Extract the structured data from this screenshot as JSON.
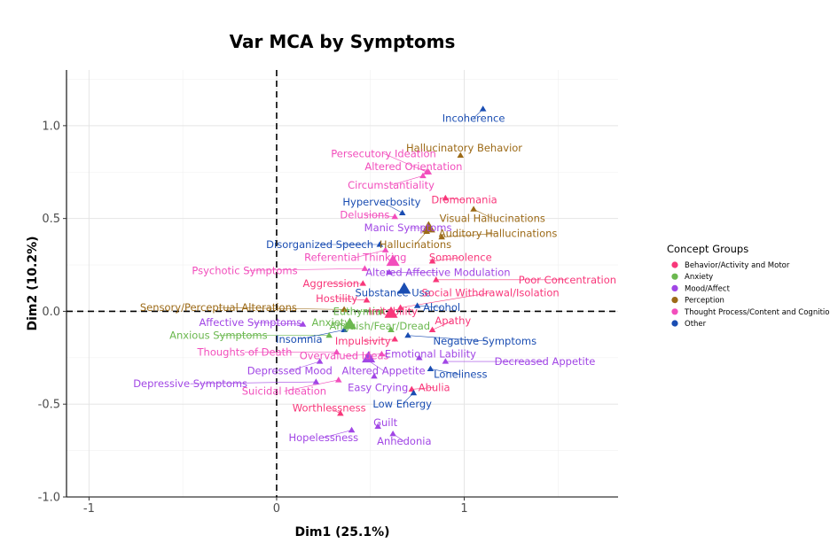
{
  "chart_data": {
    "type": "scatter",
    "title": "Var MCA by Symptoms",
    "xlabel": "Dim1 (25.1%)",
    "ylabel": "Dim2 (10.2%)",
    "xlim": [
      -1.12,
      1.82
    ],
    "ylim": [
      -1.0,
      1.3
    ],
    "x_ticks": [
      {
        "v": -1,
        "label": "-1"
      },
      {
        "v": 0,
        "label": "0"
      },
      {
        "v": 1,
        "label": "1"
      }
    ],
    "y_ticks": [
      {
        "v": -1.0,
        "label": "-1.0"
      },
      {
        "v": -0.5,
        "label": "-0.5"
      },
      {
        "v": 0.0,
        "label": "0.0"
      },
      {
        "v": 0.5,
        "label": "0.5"
      },
      {
        "v": 1.0,
        "label": "1.0"
      }
    ],
    "grid": true,
    "reference_lines": {
      "x": 0,
      "y": 0,
      "style": "dashed"
    },
    "legend": {
      "title": "Concept Groups",
      "placement": "right",
      "entries": [
        {
          "key": "behavior",
          "label": "Behavior/Activity and Motor",
          "color": "#F8377A"
        },
        {
          "key": "anxiety",
          "label": "Anxiety",
          "color": "#6BB84F"
        },
        {
          "key": "mood",
          "label": "Mood/Affect",
          "color": "#A146E5"
        },
        {
          "key": "perception",
          "label": "Perception",
          "color": "#9C6A17"
        },
        {
          "key": "thought",
          "label": "Thought Process/Content and Cognition",
          "color": "#F24EBC"
        },
        {
          "key": "other",
          "label": "Other",
          "color": "#1A4DB2"
        }
      ]
    },
    "points": [
      {
        "label": "Incoherence",
        "group": "other",
        "x": 1.1,
        "y": 1.09,
        "lx": 1.05,
        "ly": 1.04
      },
      {
        "label": "Hallucinatory Behavior",
        "group": "perception",
        "x": 0.98,
        "y": 0.84,
        "lx": 1.0,
        "ly": 0.88
      },
      {
        "label": "Persecutory Ideation",
        "group": "thought",
        "x": 0.8,
        "y": 0.75,
        "lx": 0.57,
        "ly": 0.85
      },
      {
        "label": "Altered Orientation",
        "group": "thought",
        "x": 0.81,
        "y": 0.75,
        "lx": 0.73,
        "ly": 0.78
      },
      {
        "label": "Circumstantiality",
        "group": "thought",
        "x": 0.78,
        "y": 0.73,
        "lx": 0.61,
        "ly": 0.68
      },
      {
        "label": "Dromomania",
        "group": "behavior",
        "x": 0.9,
        "y": 0.61,
        "lx": 1.0,
        "ly": 0.6
      },
      {
        "label": "Hyperverbosity",
        "group": "other",
        "x": 0.67,
        "y": 0.53,
        "lx": 0.56,
        "ly": 0.59
      },
      {
        "label": "Delusions",
        "group": "thought",
        "x": 0.63,
        "y": 0.51,
        "lx": 0.47,
        "ly": 0.52
      },
      {
        "label": "Visual Hallucinations",
        "group": "perception",
        "x": 1.05,
        "y": 0.55,
        "lx": 1.15,
        "ly": 0.5
      },
      {
        "label": "Manic Symptoms",
        "group": "mood",
        "x": 0.81,
        "y": 0.45,
        "lx": 0.7,
        "ly": 0.45
      },
      {
        "label": "Auditory Hallucinations",
        "group": "perception",
        "x": 0.88,
        "y": 0.4,
        "lx": 1.18,
        "ly": 0.42
      },
      {
        "label": "Disorganized Speech",
        "group": "other",
        "x": 0.55,
        "y": 0.36,
        "lx": 0.23,
        "ly": 0.36
      },
      {
        "label": "Hallucinations",
        "group": "perception",
        "x": 0.8,
        "y": 0.43,
        "lx": 0.74,
        "ly": 0.36
      },
      {
        "label": "Referential Thinking",
        "group": "thought",
        "x": 0.58,
        "y": 0.33,
        "lx": 0.42,
        "ly": 0.29
      },
      {
        "label": "Somnolence",
        "group": "behavior",
        "x": 0.83,
        "y": 0.27,
        "lx": 0.98,
        "ly": 0.29
      },
      {
        "label": "Psychotic Symptoms",
        "group": "thought",
        "x": 0.47,
        "y": 0.23,
        "lx": -0.17,
        "ly": 0.22
      },
      {
        "label": "Altered Affective Modulation",
        "group": "mood",
        "x": 0.6,
        "y": 0.21,
        "lx": 0.86,
        "ly": 0.21
      },
      {
        "label": "Poor Concentration",
        "group": "behavior",
        "x": 0.85,
        "y": 0.17,
        "lx": 1.55,
        "ly": 0.17
      },
      {
        "label": "Aggression",
        "group": "behavior",
        "x": 0.46,
        "y": 0.15,
        "lx": 0.29,
        "ly": 0.15
      },
      {
        "label": "Substance Use",
        "group": "other",
        "x": 0.68,
        "y": 0.12,
        "lx": 0.62,
        "ly": 0.1
      },
      {
        "label": "Social Withdrawal/Isolation",
        "group": "behavior",
        "x": 0.66,
        "y": 0.02,
        "lx": 1.14,
        "ly": 0.1
      },
      {
        "label": "Hostility",
        "group": "behavior",
        "x": 0.48,
        "y": 0.06,
        "lx": 0.32,
        "ly": 0.07
      },
      {
        "label": "Alcohol",
        "group": "other",
        "x": 0.75,
        "y": 0.03,
        "lx": 0.88,
        "ly": 0.02
      },
      {
        "label": "Sensory/Perceptual Alterations",
        "group": "perception",
        "x": 0.36,
        "y": 0.01,
        "lx": -0.31,
        "ly": 0.02
      },
      {
        "label": "Euthymia",
        "group": "anxiety",
        "x": 0.56,
        "y": 0.0,
        "lx": 0.43,
        "ly": 0.0
      },
      {
        "label": "Irritability",
        "group": "behavior",
        "x": 0.62,
        "y": -0.01,
        "lx": 0.62,
        "ly": 0.0
      },
      {
        "label": "Apathy",
        "group": "behavior",
        "x": 0.83,
        "y": -0.1,
        "lx": 0.94,
        "ly": -0.05
      },
      {
        "label": "Affective Symptoms",
        "group": "mood",
        "x": 0.14,
        "y": -0.07,
        "lx": -0.14,
        "ly": -0.06
      },
      {
        "label": "Anxiety",
        "group": "anxiety",
        "x": 0.38,
        "y": -0.07,
        "lx": 0.29,
        "ly": -0.06
      },
      {
        "label": "Anguish/Fear/Dread",
        "group": "anxiety",
        "x": 0.61,
        "y": -0.1,
        "lx": 0.55,
        "ly": -0.08
      },
      {
        "label": "Anxious Symptoms",
        "group": "anxiety",
        "x": 0.28,
        "y": -0.13,
        "lx": -0.31,
        "ly": -0.13
      },
      {
        "label": "Insomnia",
        "group": "other",
        "x": 0.36,
        "y": -0.1,
        "lx": 0.12,
        "ly": -0.15
      },
      {
        "label": "Negative Symptoms",
        "group": "other",
        "x": 0.7,
        "y": -0.13,
        "lx": 1.11,
        "ly": -0.16
      },
      {
        "label": "Impulsivity",
        "group": "behavior",
        "x": 0.63,
        "y": -0.15,
        "lx": 0.46,
        "ly": -0.16
      },
      {
        "label": "Thoughts of Death",
        "group": "thought",
        "x": 0.32,
        "y": -0.22,
        "lx": -0.17,
        "ly": -0.22
      },
      {
        "label": "Overvalued Ideas",
        "group": "thought",
        "x": 0.56,
        "y": -0.23,
        "lx": 0.36,
        "ly": -0.24
      },
      {
        "label": "Emotional Lability",
        "group": "mood",
        "x": 0.76,
        "y": -0.25,
        "lx": 0.82,
        "ly": -0.23
      },
      {
        "label": "Decreased Appetite",
        "group": "mood",
        "x": 0.9,
        "y": -0.27,
        "lx": 1.43,
        "ly": -0.27
      },
      {
        "label": "Depressed Mood",
        "group": "mood",
        "x": 0.23,
        "y": -0.27,
        "lx": 0.07,
        "ly": -0.32
      },
      {
        "label": "Altered Appetite",
        "group": "mood",
        "x": 0.48,
        "y": -0.26,
        "lx": 0.57,
        "ly": -0.32
      },
      {
        "label": "Loneliness",
        "group": "other",
        "x": 0.82,
        "y": -0.31,
        "lx": 0.98,
        "ly": -0.34
      },
      {
        "label": "Depressive Symptoms",
        "group": "mood",
        "x": 0.21,
        "y": -0.38,
        "lx": -0.46,
        "ly": -0.39
      },
      {
        "label": "Easy Crying",
        "group": "mood",
        "x": 0.52,
        "y": -0.35,
        "lx": 0.54,
        "ly": -0.41
      },
      {
        "label": "Suicidal Ideation",
        "group": "thought",
        "x": 0.33,
        "y": -0.37,
        "lx": 0.04,
        "ly": -0.43
      },
      {
        "label": "Abulia",
        "group": "behavior",
        "x": 0.72,
        "y": -0.42,
        "lx": 0.84,
        "ly": -0.41
      },
      {
        "label": "Low Energy",
        "group": "other",
        "x": 0.73,
        "y": -0.44,
        "lx": 0.67,
        "ly": -0.5
      },
      {
        "label": "Worthlessness",
        "group": "behavior",
        "x": 0.34,
        "y": -0.55,
        "lx": 0.28,
        "ly": -0.52
      },
      {
        "label": "Guilt",
        "group": "mood",
        "x": 0.54,
        "y": -0.62,
        "lx": 0.58,
        "ly": -0.6
      },
      {
        "label": "Hopelessness",
        "group": "mood",
        "x": 0.4,
        "y": -0.64,
        "lx": 0.25,
        "ly": -0.68
      },
      {
        "label": "Anhedonia",
        "group": "mood",
        "x": 0.62,
        "y": -0.66,
        "lx": 0.68,
        "ly": -0.7
      }
    ],
    "highlight_points": [
      {
        "group": "thought",
        "x": 0.62,
        "y": 0.27
      },
      {
        "group": "mood",
        "x": 0.49,
        "y": -0.25
      },
      {
        "group": "anxiety",
        "x": 0.39,
        "y": -0.07
      },
      {
        "group": "other",
        "x": 0.68,
        "y": 0.12
      },
      {
        "group": "perception",
        "x": 0.81,
        "y": 0.45
      },
      {
        "group": "behavior",
        "x": 0.61,
        "y": -0.01
      }
    ]
  }
}
